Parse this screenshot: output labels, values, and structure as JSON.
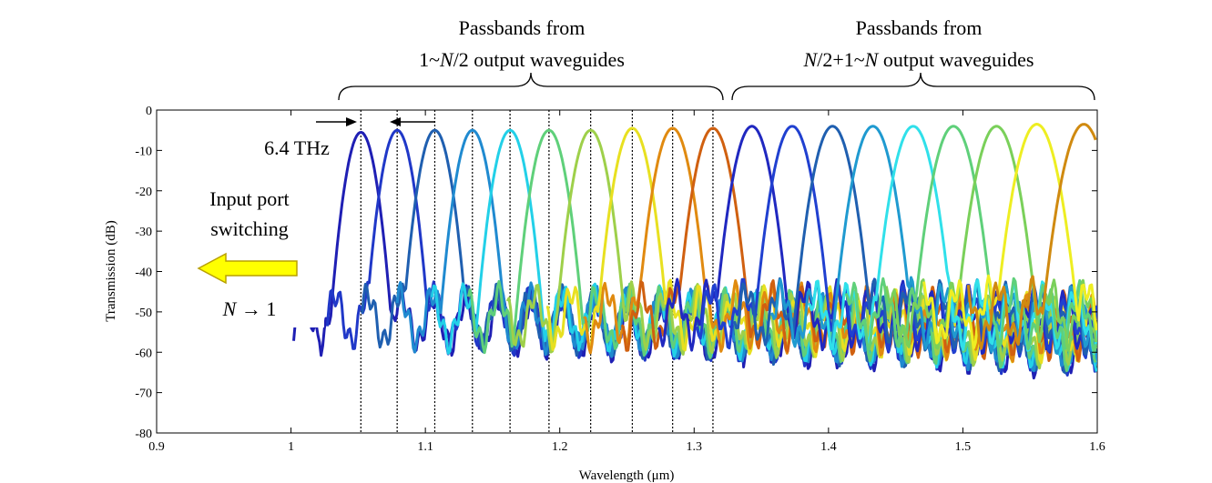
{
  "chart_data": {
    "type": "line",
    "title": "",
    "xlabel": "Wavelength (μm)",
    "ylabel": "Transmission (dB)",
    "xlim": [
      0.9,
      1.6
    ],
    "ylim": [
      -80,
      0
    ],
    "x_ticks": [
      "0.9",
      "1",
      "1.1",
      "1.2",
      "1.3",
      "1.4",
      "1.5",
      "1.6"
    ],
    "y_ticks": [
      "0",
      "-10",
      "-20",
      "-30",
      "-40",
      "-50",
      "-60",
      "-70",
      "-80"
    ],
    "grid": false,
    "legend": "none",
    "series": [
      {
        "peak_wavelength": 1.052,
        "peak_db": -5.5,
        "color": "#1f1fb4"
      },
      {
        "peak_wavelength": 1.079,
        "peak_db": -5.0,
        "color": "#2038c8"
      },
      {
        "peak_wavelength": 1.107,
        "peak_db": -5.0,
        "color": "#1f5fb0"
      },
      {
        "peak_wavelength": 1.135,
        "peak_db": -5.0,
        "color": "#1f8ad0"
      },
      {
        "peak_wavelength": 1.163,
        "peak_db": -5.0,
        "color": "#22d0e8"
      },
      {
        "peak_wavelength": 1.192,
        "peak_db": -5.0,
        "color": "#5fd07a"
      },
      {
        "peak_wavelength": 1.223,
        "peak_db": -5.0,
        "color": "#9ed04a"
      },
      {
        "peak_wavelength": 1.254,
        "peak_db": -4.5,
        "color": "#e8e020"
      },
      {
        "peak_wavelength": 1.284,
        "peak_db": -4.5,
        "color": "#e08a10"
      },
      {
        "peak_wavelength": 1.314,
        "peak_db": -4.5,
        "color": "#d06010"
      },
      {
        "peak_wavelength": 1.343,
        "peak_db": -4.0,
        "color": "#2028c0"
      },
      {
        "peak_wavelength": 1.373,
        "peak_db": -4.0,
        "color": "#2040d0"
      },
      {
        "peak_wavelength": 1.403,
        "peak_db": -4.0,
        "color": "#1f5fb0"
      },
      {
        "peak_wavelength": 1.433,
        "peak_db": -4.0,
        "color": "#1f9ad0"
      },
      {
        "peak_wavelength": 1.463,
        "peak_db": -4.0,
        "color": "#30e0ea"
      },
      {
        "peak_wavelength": 1.493,
        "peak_db": -4.0,
        "color": "#5fd07a"
      },
      {
        "peak_wavelength": 1.525,
        "peak_db": -4.0,
        "color": "#7ad05a"
      },
      {
        "peak_wavelength": 1.555,
        "peak_db": -3.5,
        "color": "#eeee22"
      },
      {
        "peak_wavelength": 1.59,
        "peak_db": -3.5,
        "color": "#d08a10"
      }
    ],
    "dotted_lines_wavelength": [
      1.052,
      1.079,
      1.107,
      1.135,
      1.163,
      1.192,
      1.223,
      1.254,
      1.284,
      1.314
    ],
    "noise_floor_db": -70,
    "annotations": {
      "group1_line1": "Passbands from",
      "group1_line2_a": "1~",
      "group1_line2_b": "N",
      "group1_line2_c": "/2 output waveguides",
      "group2_line1": "Passbands from",
      "group2_line2_a": "N",
      "group2_line2_b": "/2+1~",
      "group2_line2_c": "N",
      "group2_line2_d": " output waveguides",
      "spacing_label": "6.4 THz",
      "switch_line1": "Input port",
      "switch_line2": "switching",
      "switch_dir_a": "N",
      "switch_dir_b": " → 1",
      "arrow_color": "#ffff00"
    }
  }
}
